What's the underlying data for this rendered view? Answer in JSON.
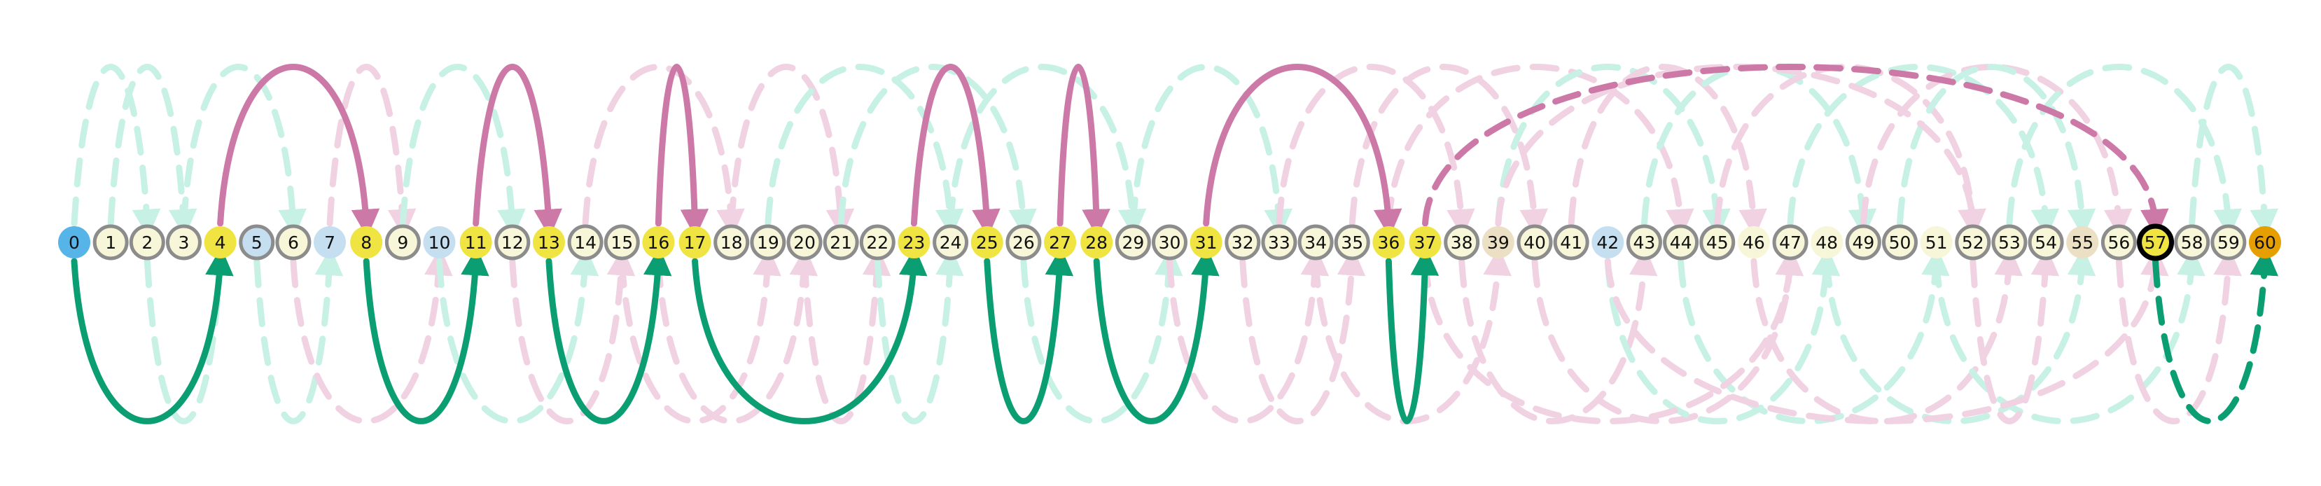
{
  "colors": {
    "green": "#0b9e73",
    "pink": "#cc79a7",
    "ghost_green": "#c6f1e4",
    "ghost_pink": "#f0d2e2",
    "node_ring": "#8c8c8c",
    "node_fill_default": "#f8f6d8"
  },
  "nodes": [
    {
      "label": "0",
      "fill": "#56b4e9",
      "ring": "none"
    },
    {
      "label": "1",
      "fill": "#f8f6d8",
      "ring": "gray"
    },
    {
      "label": "2",
      "fill": "#f8f6d8",
      "ring": "gray"
    },
    {
      "label": "3",
      "fill": "#f8f6d8",
      "ring": "gray"
    },
    {
      "label": "4",
      "fill": "#f0e442",
      "ring": "none"
    },
    {
      "label": "5",
      "fill": "#c5dff0",
      "ring": "gray"
    },
    {
      "label": "6",
      "fill": "#f8f6d8",
      "ring": "gray"
    },
    {
      "label": "7",
      "fill": "#c5dff0",
      "ring": "none"
    },
    {
      "label": "8",
      "fill": "#f0e442",
      "ring": "none"
    },
    {
      "label": "9",
      "fill": "#f8f6d8",
      "ring": "gray"
    },
    {
      "label": "10",
      "fill": "#c5dff0",
      "ring": "none"
    },
    {
      "label": "11",
      "fill": "#f0e442",
      "ring": "none"
    },
    {
      "label": "12",
      "fill": "#f8f6d8",
      "ring": "gray"
    },
    {
      "label": "13",
      "fill": "#f0e442",
      "ring": "none"
    },
    {
      "label": "14",
      "fill": "#f8f6d8",
      "ring": "gray"
    },
    {
      "label": "15",
      "fill": "#f8f6d8",
      "ring": "gray"
    },
    {
      "label": "16",
      "fill": "#f0e442",
      "ring": "none"
    },
    {
      "label": "17",
      "fill": "#f0e442",
      "ring": "none"
    },
    {
      "label": "18",
      "fill": "#f8f6d8",
      "ring": "gray"
    },
    {
      "label": "19",
      "fill": "#f8f6d8",
      "ring": "gray"
    },
    {
      "label": "20",
      "fill": "#f8f6d8",
      "ring": "gray"
    },
    {
      "label": "21",
      "fill": "#f8f6d8",
      "ring": "gray"
    },
    {
      "label": "22",
      "fill": "#f8f6d8",
      "ring": "gray"
    },
    {
      "label": "23",
      "fill": "#f0e442",
      "ring": "none"
    },
    {
      "label": "24",
      "fill": "#f8f6d8",
      "ring": "gray"
    },
    {
      "label": "25",
      "fill": "#f0e442",
      "ring": "none"
    },
    {
      "label": "26",
      "fill": "#f8f6d8",
      "ring": "gray"
    },
    {
      "label": "27",
      "fill": "#f0e442",
      "ring": "none"
    },
    {
      "label": "28",
      "fill": "#f0e442",
      "ring": "none"
    },
    {
      "label": "29",
      "fill": "#f8f6d8",
      "ring": "gray"
    },
    {
      "label": "30",
      "fill": "#f8f6d8",
      "ring": "gray"
    },
    {
      "label": "31",
      "fill": "#f0e442",
      "ring": "none"
    },
    {
      "label": "32",
      "fill": "#f8f6d8",
      "ring": "gray"
    },
    {
      "label": "33",
      "fill": "#f8f6d8",
      "ring": "gray"
    },
    {
      "label": "34",
      "fill": "#f8f6d8",
      "ring": "gray"
    },
    {
      "label": "35",
      "fill": "#f8f6d8",
      "ring": "gray"
    },
    {
      "label": "36",
      "fill": "#f0e442",
      "ring": "none"
    },
    {
      "label": "37",
      "fill": "#f0e442",
      "ring": "none"
    },
    {
      "label": "38",
      "fill": "#f8f6d8",
      "ring": "gray"
    },
    {
      "label": "39",
      "fill": "#ece0c4",
      "ring": "none"
    },
    {
      "label": "40",
      "fill": "#f8f6d8",
      "ring": "gray"
    },
    {
      "label": "41",
      "fill": "#f8f6d8",
      "ring": "gray"
    },
    {
      "label": "42",
      "fill": "#c5dff0",
      "ring": "none"
    },
    {
      "label": "43",
      "fill": "#f8f6d8",
      "ring": "gray"
    },
    {
      "label": "44",
      "fill": "#f8f6d8",
      "ring": "gray"
    },
    {
      "label": "45",
      "fill": "#f8f6d8",
      "ring": "gray"
    },
    {
      "label": "46",
      "fill": "#f8f6d8",
      "ring": "none"
    },
    {
      "label": "47",
      "fill": "#f8f6d8",
      "ring": "gray"
    },
    {
      "label": "48",
      "fill": "#f8f6d8",
      "ring": "none"
    },
    {
      "label": "49",
      "fill": "#f8f6d8",
      "ring": "gray"
    },
    {
      "label": "50",
      "fill": "#f8f6d8",
      "ring": "gray"
    },
    {
      "label": "51",
      "fill": "#f8f6d8",
      "ring": "none"
    },
    {
      "label": "52",
      "fill": "#f8f6d8",
      "ring": "gray"
    },
    {
      "label": "53",
      "fill": "#f8f6d8",
      "ring": "gray"
    },
    {
      "label": "54",
      "fill": "#f8f6d8",
      "ring": "gray"
    },
    {
      "label": "55",
      "fill": "#ece0c4",
      "ring": "none"
    },
    {
      "label": "56",
      "fill": "#f8f6d8",
      "ring": "gray"
    },
    {
      "label": "57",
      "fill": "#f0e442",
      "ring": "black"
    },
    {
      "label": "58",
      "fill": "#f8f6d8",
      "ring": "gray"
    },
    {
      "label": "59",
      "fill": "#f8f6d8",
      "ring": "gray"
    },
    {
      "label": "60",
      "fill": "#e69f00",
      "ring": "none"
    }
  ],
  "path_arcs": [
    {
      "from": 0,
      "to": 4,
      "side": "below",
      "style": "solid",
      "color": "green"
    },
    {
      "from": 4,
      "to": 8,
      "side": "above",
      "style": "solid",
      "color": "pink"
    },
    {
      "from": 8,
      "to": 11,
      "side": "below",
      "style": "solid",
      "color": "green"
    },
    {
      "from": 11,
      "to": 13,
      "side": "above",
      "style": "solid",
      "color": "pink"
    },
    {
      "from": 13,
      "to": 16,
      "side": "below",
      "style": "solid",
      "color": "green"
    },
    {
      "from": 16,
      "to": 17,
      "side": "above",
      "style": "solid",
      "color": "pink"
    },
    {
      "from": 17,
      "to": 23,
      "side": "below",
      "style": "solid",
      "color": "green"
    },
    {
      "from": 23,
      "to": 25,
      "side": "above",
      "style": "solid",
      "color": "pink"
    },
    {
      "from": 25,
      "to": 27,
      "side": "below",
      "style": "solid",
      "color": "green"
    },
    {
      "from": 27,
      "to": 28,
      "side": "above",
      "style": "solid",
      "color": "pink"
    },
    {
      "from": 28,
      "to": 31,
      "side": "below",
      "style": "solid",
      "color": "green"
    },
    {
      "from": 31,
      "to": 36,
      "side": "above",
      "style": "solid",
      "color": "pink"
    },
    {
      "from": 36,
      "to": 37,
      "side": "below",
      "style": "solid",
      "color": "green"
    },
    {
      "from": 37,
      "to": 57,
      "side": "above",
      "style": "dashed",
      "color": "pink"
    },
    {
      "from": 57,
      "to": 60,
      "side": "below",
      "style": "dashed",
      "color": "green"
    }
  ],
  "ghost_arcs": [
    {
      "from": 1,
      "to": 3,
      "side": "above",
      "color": "ghost_green"
    },
    {
      "from": 0,
      "to": 2,
      "side": "above",
      "color": "ghost_green"
    },
    {
      "from": 2,
      "to": 4,
      "side": "below",
      "color": "ghost_green"
    },
    {
      "from": 5,
      "to": 7,
      "side": "below",
      "color": "ghost_green"
    },
    {
      "from": 3,
      "to": 6,
      "side": "above",
      "color": "ghost_green"
    },
    {
      "from": 6,
      "to": 10,
      "side": "below",
      "color": "ghost_pink"
    },
    {
      "from": 7,
      "to": 9,
      "side": "above",
      "color": "ghost_pink"
    },
    {
      "from": 9,
      "to": 12,
      "side": "above",
      "color": "ghost_green"
    },
    {
      "from": 10,
      "to": 14,
      "side": "below",
      "color": "ghost_green"
    },
    {
      "from": 12,
      "to": 15,
      "side": "below",
      "color": "ghost_pink"
    },
    {
      "from": 14,
      "to": 18,
      "side": "above",
      "color": "ghost_pink"
    },
    {
      "from": 15,
      "to": 19,
      "side": "below",
      "color": "ghost_pink"
    },
    {
      "from": 18,
      "to": 21,
      "side": "above",
      "color": "ghost_pink"
    },
    {
      "from": 16,
      "to": 20,
      "side": "below",
      "color": "ghost_pink"
    },
    {
      "from": 19,
      "to": 24,
      "side": "above",
      "color": "ghost_green"
    },
    {
      "from": 20,
      "to": 22,
      "side": "below",
      "color": "ghost_pink"
    },
    {
      "from": 21,
      "to": 26,
      "side": "above",
      "color": "ghost_green"
    },
    {
      "from": 22,
      "to": 24,
      "side": "below",
      "color": "ghost_green"
    },
    {
      "from": 24,
      "to": 29,
      "side": "above",
      "color": "ghost_green"
    },
    {
      "from": 26,
      "to": 30,
      "side": "below",
      "color": "ghost_green"
    },
    {
      "from": 29,
      "to": 33,
      "side": "above",
      "color": "ghost_green"
    },
    {
      "from": 30,
      "to": 34,
      "side": "below",
      "color": "ghost_pink"
    },
    {
      "from": 32,
      "to": 35,
      "side": "below",
      "color": "ghost_pink"
    },
    {
      "from": 33,
      "to": 38,
      "side": "above",
      "color": "ghost_pink"
    },
    {
      "from": 34,
      "to": 39,
      "side": "below",
      "color": "ghost_pink"
    },
    {
      "from": 35,
      "to": 40,
      "side": "above",
      "color": "ghost_pink"
    },
    {
      "from": 38,
      "to": 43,
      "side": "below",
      "color": "ghost_pink"
    },
    {
      "from": 36,
      "to": 44,
      "side": "above",
      "color": "ghost_pink"
    },
    {
      "from": 39,
      "to": 45,
      "side": "above",
      "color": "ghost_green"
    },
    {
      "from": 40,
      "to": 47,
      "side": "below",
      "color": "ghost_pink"
    },
    {
      "from": 41,
      "to": 46,
      "side": "above",
      "color": "ghost_pink"
    },
    {
      "from": 42,
      "to": 48,
      "side": "below",
      "color": "ghost_green"
    },
    {
      "from": 43,
      "to": 49,
      "side": "above",
      "color": "ghost_green"
    },
    {
      "from": 44,
      "to": 51,
      "side": "below",
      "color": "ghost_green"
    },
    {
      "from": 45,
      "to": 52,
      "side": "above",
      "color": "ghost_pink"
    },
    {
      "from": 46,
      "to": 53,
      "side": "below",
      "color": "ghost_pink"
    },
    {
      "from": 47,
      "to": 54,
      "side": "above",
      "color": "ghost_green"
    },
    {
      "from": 48,
      "to": 55,
      "side": "below",
      "color": "ghost_green"
    },
    {
      "from": 49,
      "to": 56,
      "side": "above",
      "color": "ghost_pink"
    },
    {
      "from": 50,
      "to": 55,
      "side": "above",
      "color": "ghost_green"
    },
    {
      "from": 51,
      "to": 58,
      "side": "below",
      "color": "ghost_green"
    },
    {
      "from": 52,
      "to": 54,
      "side": "below",
      "color": "ghost_pink"
    },
    {
      "from": 53,
      "to": 59,
      "side": "above",
      "color": "ghost_green"
    },
    {
      "from": 56,
      "to": 59,
      "side": "below",
      "color": "ghost_pink"
    },
    {
      "from": 58,
      "to": 60,
      "side": "above",
      "color": "ghost_green"
    },
    {
      "from": 37,
      "to": 47,
      "side": "below",
      "color": "ghost_pink"
    },
    {
      "from": 42,
      "to": 57,
      "side": "below",
      "color": "ghost_pink"
    },
    {
      "from": 39,
      "to": 52,
      "side": "above",
      "color": "ghost_pink"
    }
  ]
}
